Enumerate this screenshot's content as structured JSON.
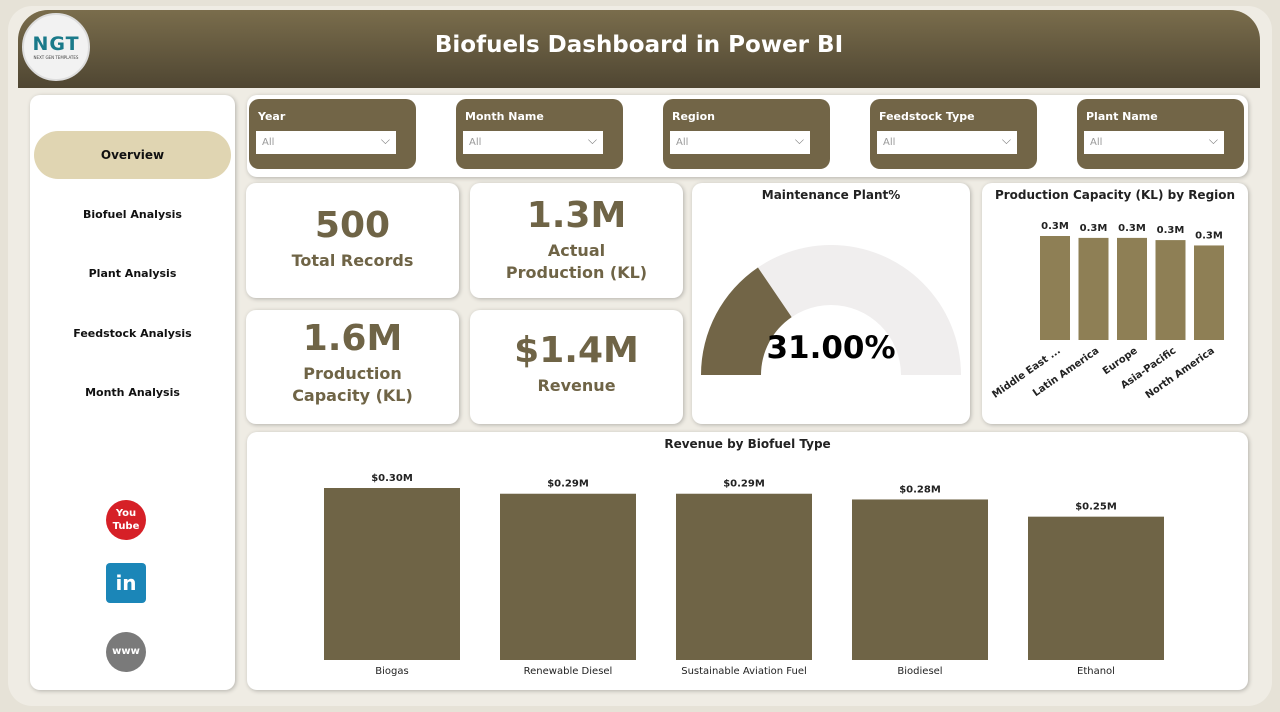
{
  "header": {
    "title": "Biofuels Dashboard in Power BI",
    "logo_text": "NGT",
    "logo_subtext": "NEXT GEN TEMPLATES"
  },
  "sidebar": {
    "items": [
      {
        "label": "Overview",
        "active": true
      },
      {
        "label": "Biofuel Analysis"
      },
      {
        "label": "Plant Analysis"
      },
      {
        "label": "Feedstock Analysis"
      },
      {
        "label": "Month Analysis"
      }
    ],
    "social": [
      {
        "icon": "youtube-icon",
        "label": "You Tube",
        "color": "#d62027"
      },
      {
        "icon": "linkedin-icon",
        "label": "in",
        "color": "#1b86b8"
      },
      {
        "icon": "globe-icon",
        "label": "www",
        "color": "#7a7a7a"
      }
    ]
  },
  "filters": [
    {
      "label": "Year",
      "value": "All"
    },
    {
      "label": "Month Name",
      "value": "All"
    },
    {
      "label": "Region",
      "value": "All"
    },
    {
      "label": "Feedstock Type",
      "value": "All"
    },
    {
      "label": "Plant Name",
      "value": "All"
    }
  ],
  "kpis": [
    {
      "value": "500",
      "label": "Total Records"
    },
    {
      "value": "1.3M",
      "label": "Actual Production (KL)"
    },
    {
      "value": "1.6M",
      "label": "Production Capacity (KL)"
    },
    {
      "value": "$1.4M",
      "label": "Revenue"
    }
  ],
  "gauge": {
    "title": "Maintenance Plant%",
    "value": 31,
    "label": "31.00%",
    "fill_color": "#726547",
    "track_color": "#f0eeee"
  },
  "chart_data": [
    {
      "type": "bar",
      "title": "Production Capacity (KL) by Region",
      "categories": [
        "Middle East ...",
        "Latin America",
        "Europe",
        "Asia-Pacific",
        "North America"
      ],
      "values": [
        0.33,
        0.324,
        0.324,
        0.317,
        0.3
      ],
      "data_labels": [
        "0.3M",
        "0.3M",
        "0.3M",
        "0.3M",
        "0.3M"
      ],
      "color": "#8e7f55"
    },
    {
      "type": "bar",
      "title": "Revenue by Biofuel Type",
      "categories": [
        "Biogas",
        "Renewable Diesel",
        "Sustainable Aviation Fuel",
        "Biodiesel",
        "Ethanol"
      ],
      "values": [
        0.3,
        0.29,
        0.29,
        0.28,
        0.25
      ],
      "data_labels": [
        "$0.30M",
        "$0.29M",
        "$0.29M",
        "$0.28M",
        "$0.25M"
      ],
      "color": "#6f6446"
    }
  ]
}
